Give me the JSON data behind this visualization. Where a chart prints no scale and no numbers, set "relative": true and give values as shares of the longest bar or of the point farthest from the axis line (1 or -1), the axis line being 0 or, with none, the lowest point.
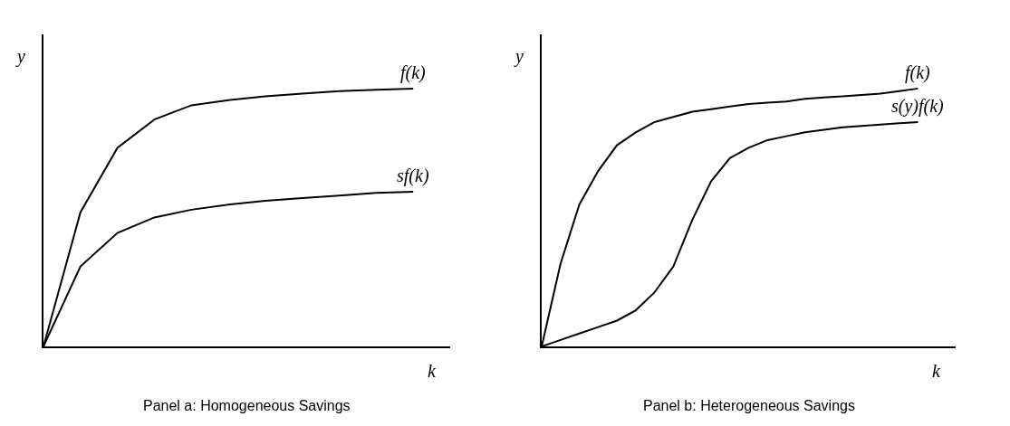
{
  "chart_data": [
    {
      "type": "line",
      "title": "Panel a: Homogeneous Savings",
      "xlabel": "k",
      "ylabel": "y",
      "relative": true,
      "legend": false,
      "marker": "none",
      "line_style": "solid",
      "categories": [
        null,
        null,
        null,
        null,
        null,
        null,
        null,
        null,
        null,
        null,
        null
      ],
      "series": [
        {
          "name": "f(k)",
          "color": "#000000",
          "values": [
            0,
            0.52,
            0.77,
            0.88,
            0.935,
            0.955,
            0.97,
            0.98,
            0.99,
            0.995,
            1
          ]
        },
        {
          "name": "sf(k)",
          "color": "#000000",
          "values": [
            0,
            0.31,
            0.44,
            0.5,
            0.53,
            0.55,
            0.565,
            0.575,
            0.585,
            0.595,
            0.6
          ]
        }
      ]
    },
    {
      "type": "line",
      "title": "Panel b: Heterogeneous Savings",
      "xlabel": "k",
      "ylabel": "y",
      "relative": true,
      "legend": false,
      "marker": "none",
      "line_style": "solid",
      "categories": [
        null,
        null,
        null,
        null,
        null,
        null,
        null,
        null,
        null,
        null,
        null,
        null,
        null,
        null,
        null,
        null,
        null,
        null,
        null,
        null,
        null
      ],
      "series": [
        {
          "name": "f(k)",
          "color": "#000000",
          "values": [
            0,
            0.32,
            0.55,
            0.68,
            0.78,
            0.83,
            0.87,
            0.89,
            0.91,
            0.92,
            0.93,
            0.94,
            0.945,
            0.95,
            0.96,
            0.965,
            0.97,
            0.975,
            0.98,
            0.99,
            1
          ]
        },
        {
          "name": "s(y)f(k)",
          "color": "#000000",
          "values": [
            0,
            0.025,
            0.05,
            0.075,
            0.1,
            0.14,
            0.21,
            0.31,
            0.49,
            0.64,
            0.73,
            0.77,
            0.8,
            0.815,
            0.83,
            0.84,
            0.85,
            0.855,
            0.86,
            0.865,
            0.87
          ]
        }
      ]
    }
  ]
}
